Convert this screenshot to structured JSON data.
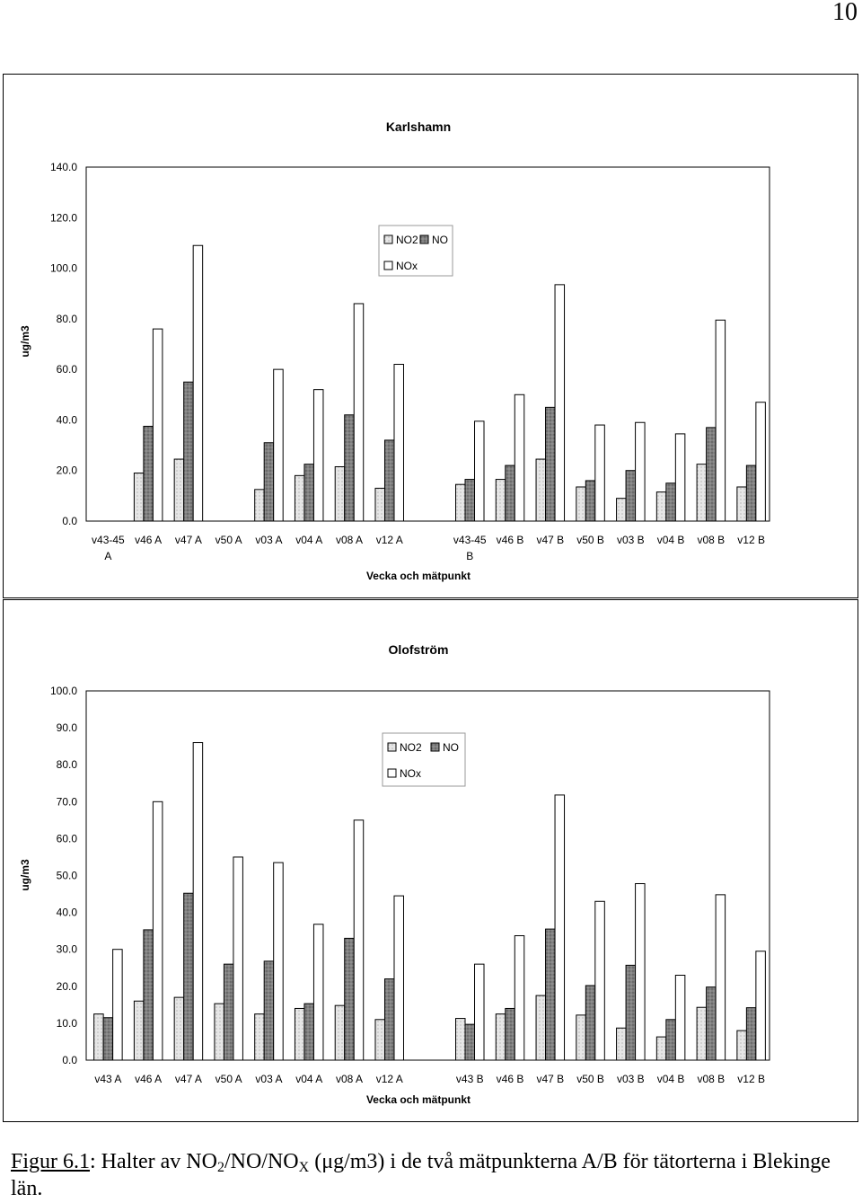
{
  "page_number": "10",
  "chart_data": [
    {
      "type": "bar",
      "title": "Karlshamn",
      "xlabel": "Vecka och mätpunkt",
      "ylabel": "ug/m3",
      "ylim": [
        0,
        140
      ],
      "yticks": [
        "0.0",
        "20.0",
        "40.0",
        "60.0",
        "80.0",
        "100.0",
        "120.0",
        "140.0"
      ],
      "grid": false,
      "legend_position": "top-center",
      "categories": [
        "v43-45\nA",
        "v46 A",
        "v47 A",
        "v50 A",
        "v03 A",
        "v04 A",
        "v08 A",
        "v12 A",
        "",
        "v43-45\nB",
        "v46 B",
        "v47 B",
        "v50 B",
        "v03 B",
        "v04 B",
        "v08 B",
        "v12 B"
      ],
      "series": [
        {
          "name": "NO2",
          "values": [
            null,
            19,
            24.5,
            null,
            12.5,
            18,
            21.5,
            13,
            null,
            14.5,
            16.5,
            24.5,
            13.5,
            9,
            11.5,
            22.5,
            13.5
          ]
        },
        {
          "name": "NO",
          "values": [
            null,
            37.5,
            55,
            null,
            31,
            22.5,
            42,
            32,
            null,
            16.5,
            22,
            45,
            16,
            20,
            15,
            37,
            22
          ]
        },
        {
          "name": "NOx",
          "values": [
            null,
            76,
            109,
            null,
            60,
            52,
            86,
            62,
            null,
            39.5,
            50,
            93.5,
            38,
            39,
            34.5,
            79.5,
            47
          ]
        }
      ]
    },
    {
      "type": "bar",
      "title": "Olofström",
      "xlabel": "Vecka och mätpunkt",
      "ylabel": "ug/m3",
      "ylim": [
        0,
        100
      ],
      "yticks": [
        "0.0",
        "10.0",
        "20.0",
        "30.0",
        "40.0",
        "50.0",
        "60.0",
        "70.0",
        "80.0",
        "90.0",
        "100.0"
      ],
      "grid": false,
      "legend_position": "top-center",
      "categories": [
        "v43 A",
        "v46 A",
        "v47 A",
        "v50 A",
        "v03 A",
        "v04 A",
        "v08 A",
        "v12 A",
        "",
        "v43 B",
        "v46 B",
        "v47 B",
        "v50 B",
        "v03 B",
        "v04 B",
        "v08 B",
        "v12 B"
      ],
      "series": [
        {
          "name": "NO2",
          "values": [
            12.5,
            16,
            17,
            15.3,
            12.5,
            14,
            14.8,
            11,
            null,
            11.3,
            12.5,
            17.5,
            12.2,
            8.7,
            6.3,
            14.3,
            8
          ]
        },
        {
          "name": "NO",
          "values": [
            11.5,
            35.3,
            45.2,
            26,
            26.8,
            15.3,
            33,
            22,
            null,
            9.7,
            14,
            35.5,
            20.2,
            25.7,
            11,
            19.8,
            14.2
          ]
        },
        {
          "name": "NOx",
          "values": [
            30,
            70,
            86,
            55,
            53.5,
            36.8,
            65,
            44.5,
            null,
            26,
            33.7,
            71.8,
            43,
            47.8,
            23,
            44.8,
            29.5
          ]
        }
      ]
    }
  ],
  "caption": {
    "figure_label": "Figur 6.1",
    "text_1": ": Halter av NO",
    "sub_1": "2",
    "text_2": "/NO/NO",
    "sub_2": "X",
    "text_3": " (μg/m3) i de två mätpunkterna A/B för tätorterna i Blekinge län."
  },
  "colors": {
    "NO2": "#e6e6e6",
    "NO": "#808080",
    "NOx": "#ffffff",
    "frame": "#000000"
  }
}
